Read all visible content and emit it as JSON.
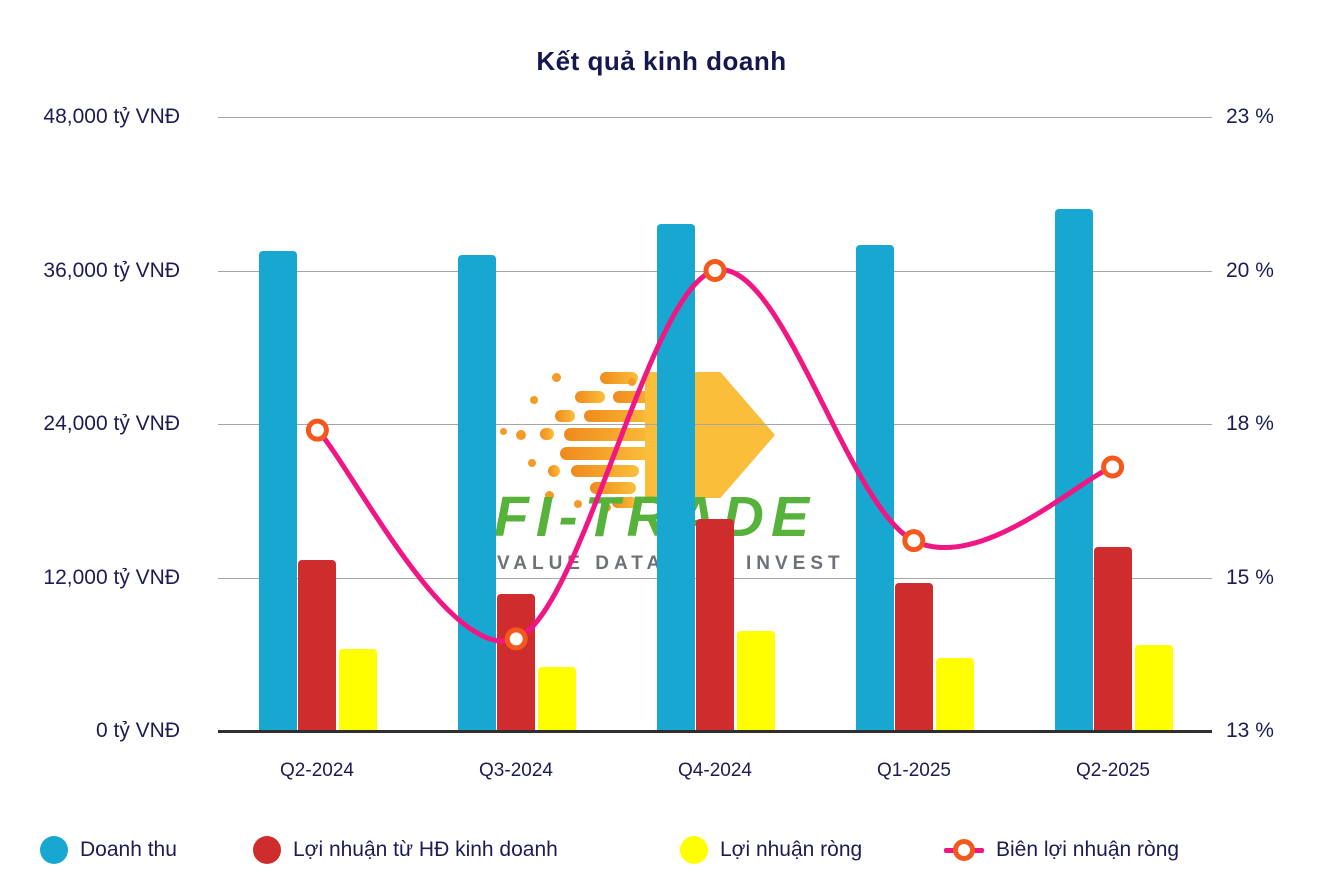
{
  "title": "Kết quả kinh doanh",
  "watermark": {
    "brand": "FI-TRADE",
    "tagline_left": "VALUE DATA -",
    "tagline_right": "INVEST"
  },
  "chart_data": {
    "type": "combo-bar-line",
    "title": "Kết quả kinh doanh",
    "categories": [
      "Q2-2024",
      "Q3-2024",
      "Q4-2024",
      "Q1-2025",
      "Q2-2025"
    ],
    "bar_series": [
      {
        "name": "Doanh thu",
        "unit": "tỷ VNĐ",
        "color": "#18a7d0",
        "values": [
          37500,
          37200,
          39600,
          38000,
          40800
        ]
      },
      {
        "name": "Lợi nhuận từ HĐ kinh doanh",
        "unit": "tỷ VNĐ",
        "color": "#cf2d2d",
        "values": [
          13400,
          10700,
          16600,
          11600,
          14400
        ]
      },
      {
        "name": "Lợi nhuận ròng",
        "unit": "tỷ VNĐ",
        "color": "#ffff00",
        "values": [
          6400,
          5000,
          7800,
          5700,
          6700
        ]
      }
    ],
    "line_series": {
      "name": "Biên lợi nhuận ròng",
      "unit": "%",
      "color": "#f01784",
      "marker_color": "#f4581c",
      "values": [
        17.4,
        14.0,
        20.0,
        15.6,
        16.8
      ]
    },
    "left_axis": {
      "min": 0,
      "max": 48000,
      "ticks": [
        "0 tỷ VNĐ",
        "12,000 tỷ VNĐ",
        "24,000 tỷ VNĐ",
        "36,000 tỷ VNĐ",
        "48,000 tỷ VNĐ"
      ]
    },
    "right_axis": {
      "min": 12.5,
      "max": 22.5,
      "ticks": [
        "13 %",
        "15 %",
        "18 %",
        "20 %",
        "23 %"
      ]
    },
    "legend": [
      {
        "label": "Doanh thu",
        "marker": "circle",
        "color": "#18a7d0"
      },
      {
        "label": "Lợi nhuận từ HĐ kinh doanh",
        "marker": "circle",
        "color": "#cf2d2d"
      },
      {
        "label": "Lợi nhuận ròng",
        "marker": "circle",
        "color": "#ffff00"
      },
      {
        "label": "Biên lợi nhuận ròng",
        "marker": "line-ring",
        "color": "#f01784",
        "ring_color": "#f4581c"
      }
    ],
    "grid": true,
    "legend_position": "bottom"
  }
}
